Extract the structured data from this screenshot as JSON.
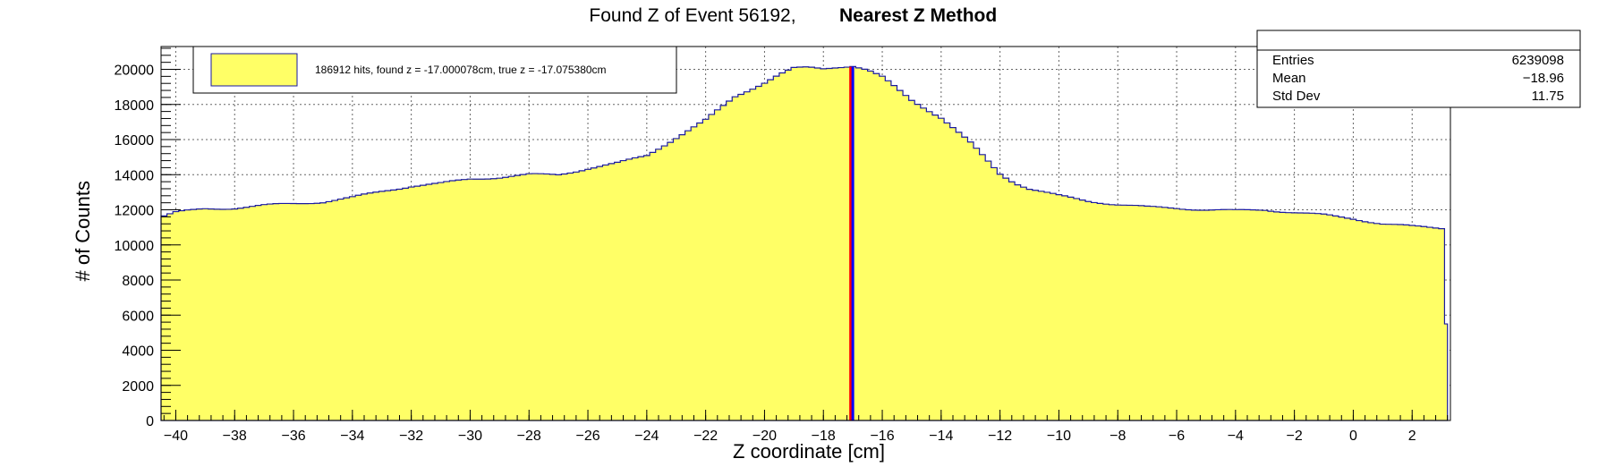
{
  "chart_data": {
    "type": "histogram",
    "title": "Found Z of Event 56192,",
    "title_bold": "Nearest Z Method",
    "xlabel": "Z coordinate [cm]",
    "ylabel": "# of Counts",
    "xlim": [
      -40.5,
      3.3
    ],
    "ylim": [
      0,
      21300
    ],
    "x_ticks": [
      -40,
      -38,
      -36,
      -34,
      -32,
      -30,
      -28,
      -26,
      -24,
      -22,
      -20,
      -18,
      -16,
      -14,
      -12,
      -10,
      -8,
      -6,
      -4,
      -2,
      0,
      2
    ],
    "x_tick_labels": [
      "−40",
      "−38",
      "−36",
      "−34",
      "−32",
      "−30",
      "−28",
      "−26",
      "−24",
      "−22",
      "−20",
      "−18",
      "−16",
      "−14",
      "−12",
      "−10",
      "−8",
      "−6",
      "−4",
      "−2",
      "0",
      "2"
    ],
    "y_ticks": [
      0,
      2000,
      4000,
      6000,
      8000,
      10000,
      12000,
      14000,
      16000,
      18000,
      20000
    ],
    "y_tick_labels": [
      "0",
      "2000",
      "4000",
      "6000",
      "8000",
      "10000",
      "12000",
      "14000",
      "16000",
      "18000",
      "20000"
    ],
    "grid": true,
    "fill_color": "#ffff66",
    "line_color": "#1a1aa0",
    "histogram_profile": {
      "x": [
        -40.5,
        -40,
        -39,
        -38,
        -37,
        -36,
        -35,
        -34,
        -33,
        -32,
        -31,
        -30,
        -29,
        -28,
        -27,
        -26,
        -25,
        -24,
        -23,
        -22,
        -21,
        -20,
        -19.5,
        -19,
        -18.5,
        -18,
        -17.5,
        -17,
        -16.5,
        -16,
        -15.5,
        -15,
        -14,
        -13,
        -12,
        -11.5,
        -11,
        -10.5,
        -10,
        -9,
        -8,
        -7,
        -6,
        -5,
        -4,
        -3,
        -2,
        -1,
        0,
        1,
        2,
        3.2
      ],
      "y": [
        11600,
        11850,
        12050,
        12100,
        12250,
        12350,
        12450,
        12700,
        13050,
        13350,
        13500,
        13750,
        13850,
        14000,
        14000,
        14350,
        14650,
        15100,
        16100,
        17100,
        18450,
        19250,
        19700,
        20050,
        20100,
        20050,
        20150,
        20200,
        19950,
        19550,
        18900,
        18250,
        17250,
        15800,
        14050,
        13550,
        13200,
        13000,
        12800,
        12500,
        12300,
        12150,
        12100,
        12000,
        11950,
        12000,
        11850,
        11700,
        11500,
        11200,
        11050,
        10950
      ],
      "last_bin_y": 5500
    },
    "vertical_lines": [
      {
        "x": -17.07538,
        "color": "#ff0000"
      },
      {
        "x": -17.000078,
        "color": "#0000ff"
      }
    ],
    "legend": {
      "label": "186912 hits, found z = -17.000078cm, true z = -17.075380cm",
      "placement": "top-left"
    },
    "stats_box": {
      "placement": "top-right",
      "rows": [
        {
          "label": "Entries",
          "value": "6239098"
        },
        {
          "label": "Mean",
          "value": "−18.96"
        },
        {
          "label": "Std Dev",
          "value": "11.75"
        }
      ]
    }
  }
}
